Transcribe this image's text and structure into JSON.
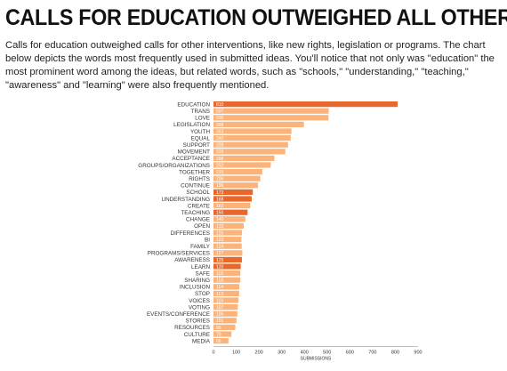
{
  "headline": "CALLS FOR EDUCATION OUTWEIGHED ALL OTHERS",
  "intro": "Calls for education outweighed calls for other interventions, like new rights, legislation or programs. The chart below depicts the words most frequently used in submitted ideas. You'll notice that not only was \"education\" the most prominent word among the ideas, but related words, such as  \"schools,\" \"understanding,\" \"teaching,\" \"awareness\" and \"learning\" were also frequently mentioned.",
  "colors": {
    "highlight": "#e8672a",
    "normal": "#fbb379",
    "label_on_bar": "#ffffff",
    "axis": "#999999",
    "text": "#333333"
  },
  "chart_data": {
    "type": "bar",
    "orientation": "horizontal",
    "categories": [
      "EDUCATION",
      "TRANS",
      "LOVE",
      "LEGISLATION",
      "YOUTH",
      "EQUAL",
      "SUPPORT",
      "MOVEMENT",
      "ACCEPTANCE",
      "GROUPS/ORGANIZATIONS",
      "TOGETHER",
      "RIGHTS",
      "CONTINUE",
      "SCHOOL",
      "UNDERSTANDING",
      "CREATE",
      "TEACHING",
      "CHANGE",
      "OPEN",
      "DIFFERENCES",
      "BI",
      "FAMILY",
      "PROGRAMS/SERVICES",
      "AWARENESS",
      "LEARN",
      "SAFE",
      "SHARING",
      "INCLUSION",
      "STOP",
      "VOICES",
      "VOTING",
      "EVENTS/CONFERENCE",
      "STORIES",
      "RESOURCES",
      "CULTURE",
      "MEDIA"
    ],
    "values": [
      810,
      507,
      506,
      398,
      343,
      340,
      328,
      316,
      268,
      252,
      215,
      206,
      196,
      173,
      168,
      162,
      150,
      140,
      133,
      125,
      123,
      124,
      127,
      125,
      120,
      118,
      118,
      114,
      113,
      110,
      107,
      105,
      101,
      96,
      79,
      66
    ],
    "highlighted": [
      "EDUCATION",
      "SCHOOL",
      "UNDERSTANDING",
      "TEACHING",
      "AWARENESS",
      "LEARN"
    ],
    "xlabel": "SUBMISSIONS",
    "xlim": [
      0,
      900
    ],
    "xticks": [
      0,
      100,
      200,
      300,
      400,
      500,
      600,
      700,
      800,
      900
    ],
    "grid": false
  }
}
